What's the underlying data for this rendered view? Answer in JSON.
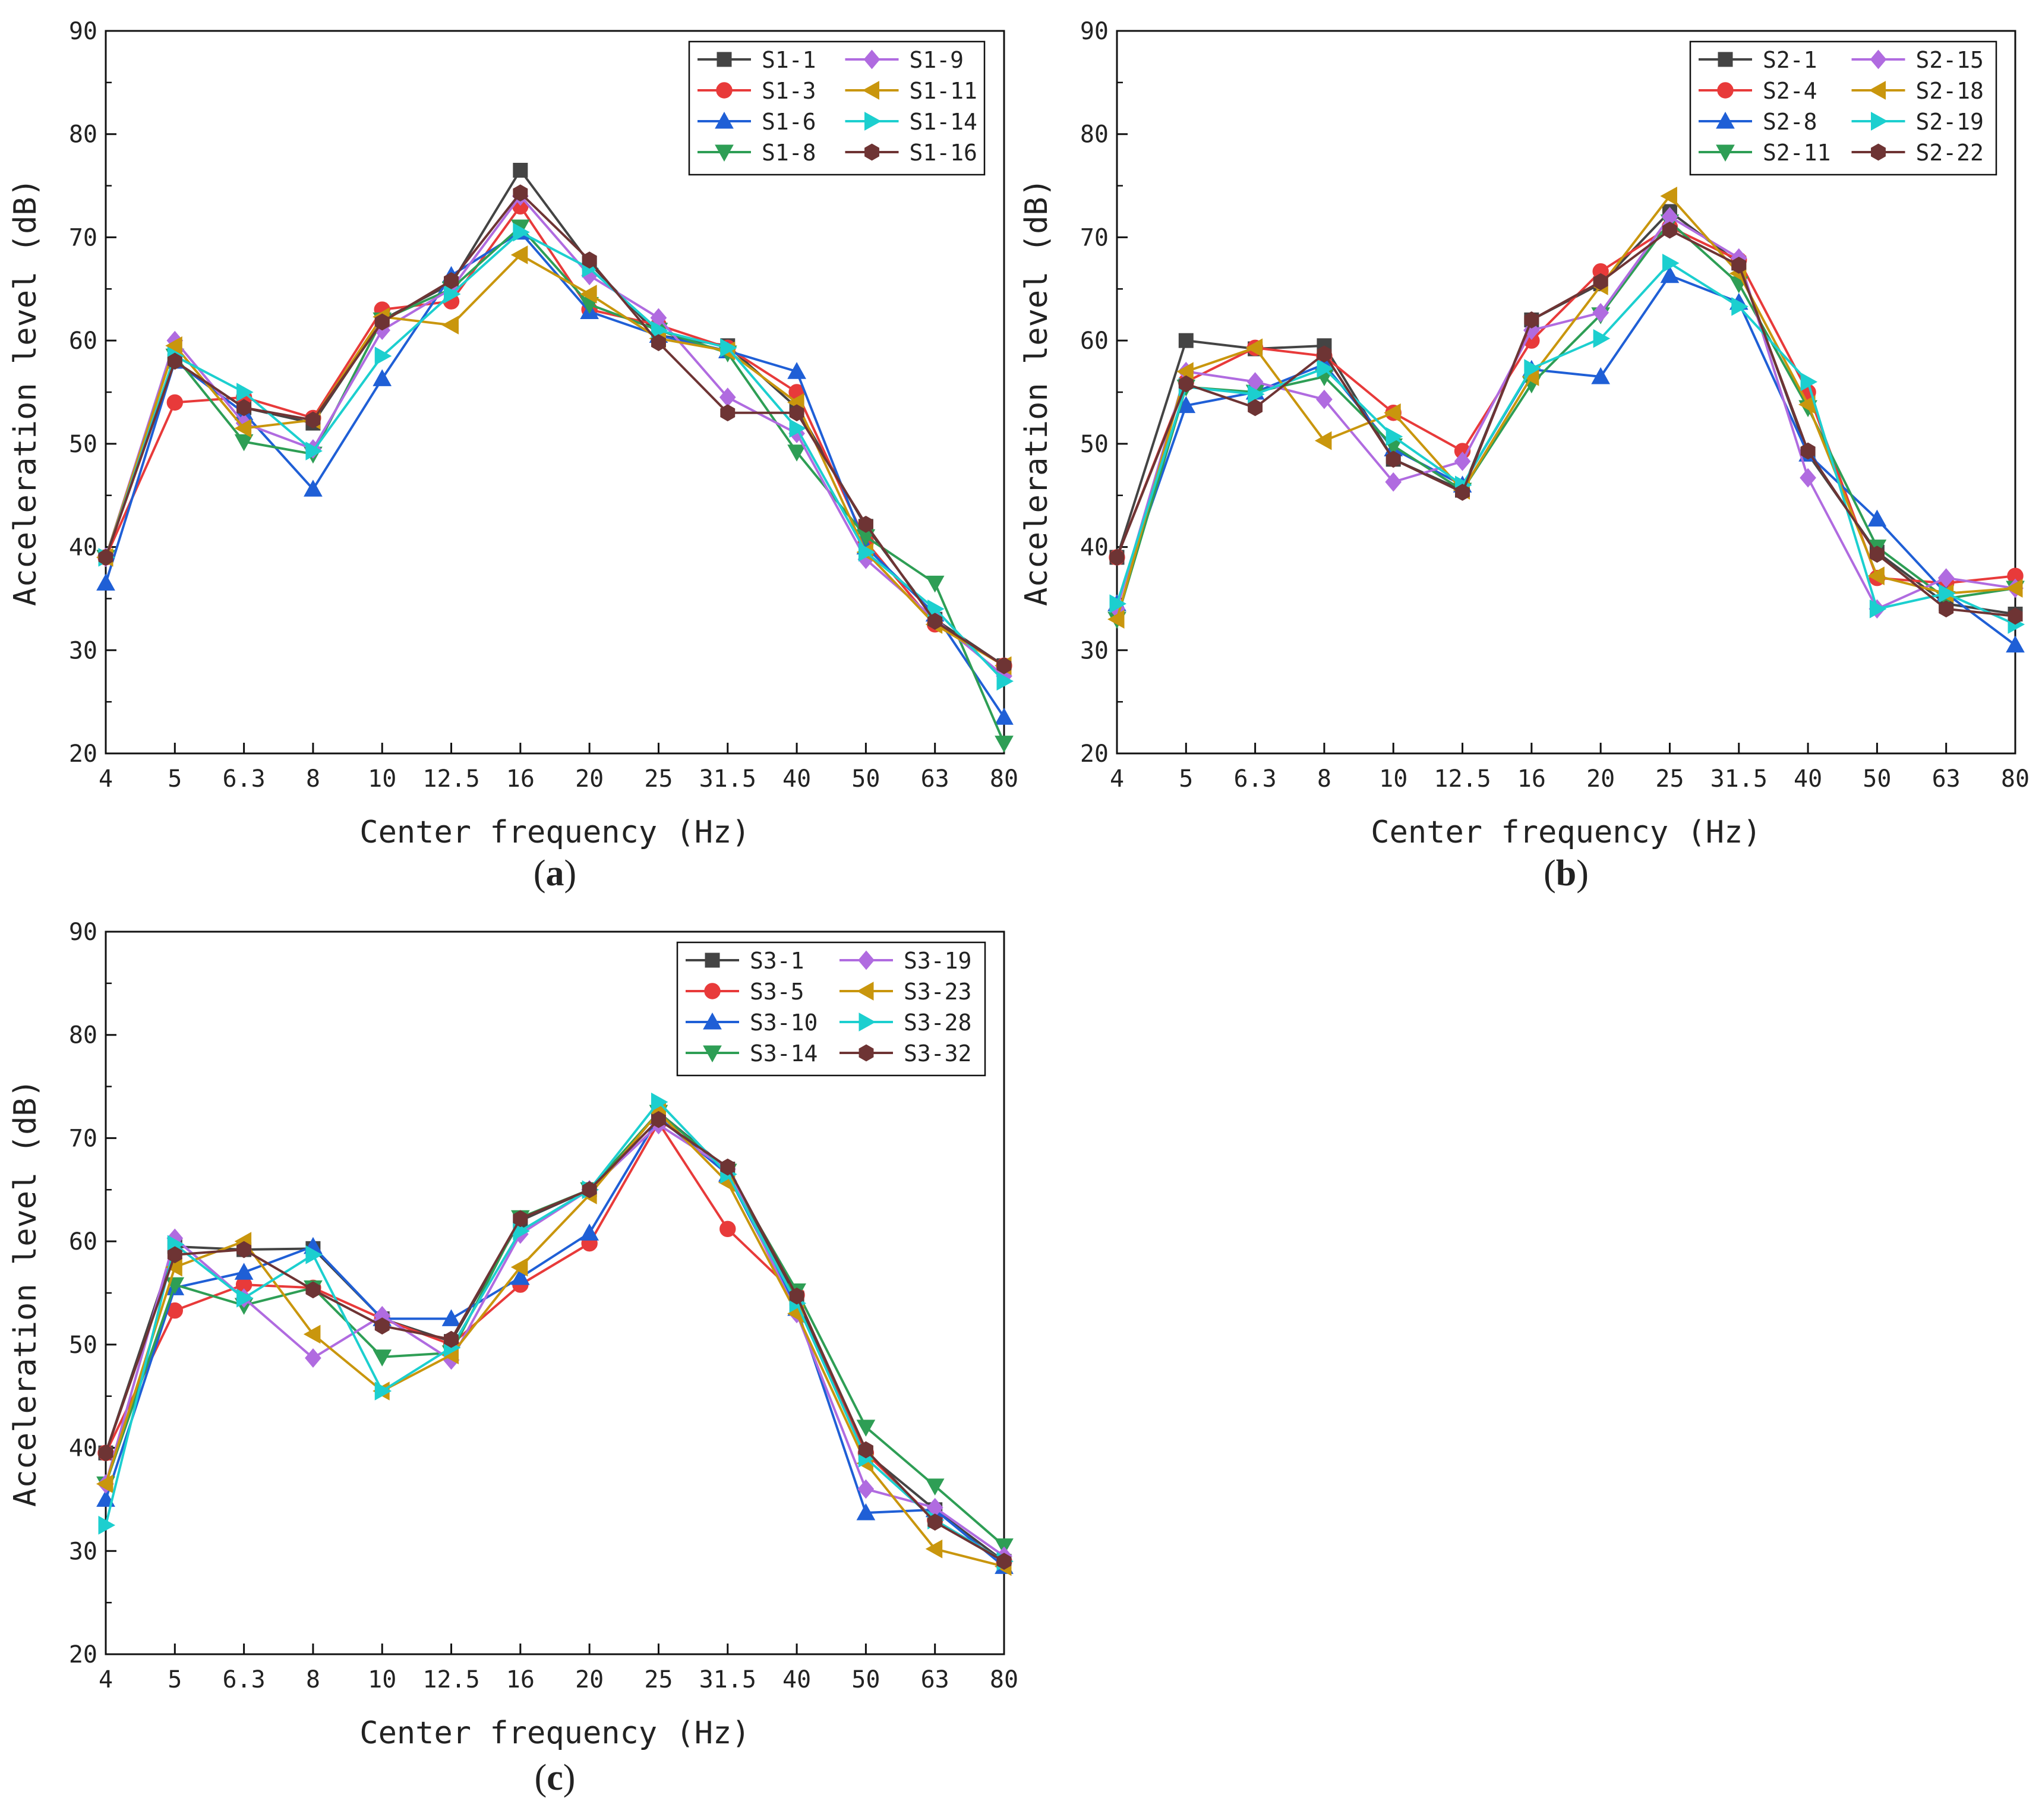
{
  "chart_data": [
    {
      "type": "line",
      "panel_label": "a",
      "categories": [
        "4",
        "5",
        "6.3",
        "8",
        "10",
        "12.5",
        "16",
        "20",
        "25",
        "31.5",
        "40",
        "50",
        "63",
        "80"
      ],
      "xlabel": "Center frequency (Hz)",
      "ylabel": "Acceleration level (dB)",
      "ylim": [
        20,
        90
      ],
      "yticks": [
        20,
        30,
        40,
        50,
        60,
        70,
        80,
        90
      ],
      "legend": "top-right",
      "series": [
        {
          "name": "S1-1",
          "color": "#444444",
          "marker": "square",
          "values": [
            39,
            58,
            53.5,
            52,
            62,
            65.5,
            76.5,
            67.5,
            60.5,
            59.5,
            53.5,
            42,
            33,
            28.5
          ]
        },
        {
          "name": "S1-3",
          "color": "#e83a3a",
          "marker": "circle",
          "values": [
            39,
            54,
            54.5,
            52.5,
            63,
            63.8,
            73,
            63,
            61.5,
            59.3,
            55,
            40.5,
            32.5,
            28.5
          ]
        },
        {
          "name": "S1-6",
          "color": "#1f5fd6",
          "marker": "triangle-up",
          "values": [
            36.5,
            58,
            53,
            45.6,
            56.3,
            66.3,
            70.5,
            62.8,
            60.5,
            59,
            57,
            40,
            33.5,
            23.5
          ]
        },
        {
          "name": "S1-8",
          "color": "#2e9e55",
          "marker": "triangle-down",
          "values": [
            39,
            58.5,
            50.2,
            49,
            62,
            65,
            71,
            63.5,
            61,
            58.8,
            49.2,
            41,
            36.5,
            21
          ]
        },
        {
          "name": "S1-9",
          "color": "#b06be0",
          "marker": "diamond",
          "values": [
            39,
            60,
            52,
            49.5,
            61,
            65,
            74,
            66.3,
            62.2,
            54.5,
            51,
            38.8,
            33,
            27.5
          ]
        },
        {
          "name": "S1-11",
          "color": "#c9960d",
          "marker": "triangle-left",
          "values": [
            39,
            59.5,
            51.5,
            52.3,
            62.3,
            61.5,
            68.3,
            64.5,
            60.2,
            59,
            54,
            39.5,
            32.5,
            28.5
          ]
        },
        {
          "name": "S1-14",
          "color": "#1ccfcf",
          "marker": "triangle-right",
          "values": [
            39,
            58.5,
            55,
            49.3,
            58.5,
            64.5,
            70.5,
            67,
            61,
            59.3,
            51.5,
            39.5,
            34,
            27
          ]
        },
        {
          "name": "S1-16",
          "color": "#6e3434",
          "marker": "hexagon",
          "values": [
            39,
            58,
            53.5,
            52.3,
            61.8,
            65.8,
            74.3,
            67.8,
            59.8,
            53,
            53,
            42.2,
            32.8,
            28.5
          ]
        }
      ]
    },
    {
      "type": "line",
      "panel_label": "b",
      "categories": [
        "4",
        "5",
        "6.3",
        "8",
        "10",
        "12.5",
        "16",
        "20",
        "25",
        "31.5",
        "40",
        "50",
        "63",
        "80"
      ],
      "xlabel": "Center frequency (Hz)",
      "ylabel": "Acceleration level (dB)",
      "ylim": [
        20,
        90
      ],
      "yticks": [
        20,
        30,
        40,
        50,
        60,
        70,
        80,
        90
      ],
      "legend": "top-right",
      "series": [
        {
          "name": "S2-1",
          "color": "#444444",
          "marker": "square",
          "values": [
            39,
            60,
            59.2,
            59.5,
            48.5,
            45.5,
            62,
            65.5,
            72.5,
            67.5,
            49,
            39.5,
            34.5,
            33.5
          ]
        },
        {
          "name": "S2-4",
          "color": "#e83a3a",
          "marker": "circle",
          "values": [
            39,
            56,
            59.3,
            58.5,
            53,
            49.3,
            60,
            66.7,
            71,
            67.8,
            55,
            37,
            36.5,
            37.2
          ]
        },
        {
          "name": "S2-8",
          "color": "#1f5fd6",
          "marker": "triangle-up",
          "values": [
            34.5,
            53.7,
            55,
            57.7,
            49.5,
            46,
            57.2,
            56.5,
            66.3,
            63.7,
            49,
            42.7,
            35.5,
            30.5
          ]
        },
        {
          "name": "S2-11",
          "color": "#2e9e55",
          "marker": "triangle-down",
          "values": [
            33,
            55.5,
            55,
            56.5,
            49.8,
            45.5,
            55.8,
            62.5,
            71.5,
            65.5,
            53.5,
            40,
            35,
            36
          ]
        },
        {
          "name": "S2-15",
          "color": "#b06be0",
          "marker": "diamond",
          "values": [
            34,
            57,
            56,
            54.3,
            46.3,
            48.3,
            61,
            62.7,
            72,
            68,
            46.7,
            34,
            37,
            36
          ]
        },
        {
          "name": "S2-18",
          "color": "#c9960d",
          "marker": "triangle-left",
          "values": [
            33,
            57,
            59.3,
            50.3,
            53,
            45.5,
            56.5,
            65.3,
            74,
            66.5,
            53.8,
            37.2,
            35.5,
            36
          ]
        },
        {
          "name": "S2-19",
          "color": "#1ccfcf",
          "marker": "triangle-right",
          "values": [
            34.5,
            55.5,
            54.8,
            57.3,
            50.7,
            46,
            57.3,
            60.2,
            67.5,
            63.3,
            56,
            34,
            35.5,
            32.5
          ]
        },
        {
          "name": "S2-22",
          "color": "#6e3434",
          "marker": "hexagon",
          "values": [
            39,
            55.8,
            53.5,
            58.7,
            48.5,
            45.3,
            62,
            65.7,
            70.7,
            67.3,
            49.3,
            39.3,
            34,
            33.3
          ]
        }
      ]
    },
    {
      "type": "line",
      "panel_label": "c",
      "categories": [
        "4",
        "5",
        "6.3",
        "8",
        "10",
        "12.5",
        "16",
        "20",
        "25",
        "31.5",
        "40",
        "50",
        "63",
        "80"
      ],
      "xlabel": "Center frequency (Hz)",
      "ylabel": "Acceleration level (dB)",
      "ylim": [
        20,
        90
      ],
      "yticks": [
        20,
        30,
        40,
        50,
        60,
        70,
        80,
        90
      ],
      "legend": "top-right",
      "series": [
        {
          "name": "S3-1",
          "color": "#444444",
          "marker": "square",
          "values": [
            39.5,
            59.5,
            59.2,
            59.3,
            52.5,
            50.3,
            62,
            65,
            72.5,
            67,
            54.5,
            39.5,
            34,
            29
          ]
        },
        {
          "name": "S3-5",
          "color": "#e83a3a",
          "marker": "circle",
          "values": [
            39.5,
            53.3,
            55.8,
            55.5,
            52.5,
            50,
            55.8,
            59.8,
            71.5,
            61.2,
            54.8,
            39.5,
            33,
            29
          ]
        },
        {
          "name": "S3-10",
          "color": "#1f5fd6",
          "marker": "triangle-up",
          "values": [
            35,
            55.5,
            57,
            59.5,
            52.5,
            52.5,
            56.5,
            60.8,
            72,
            66.5,
            53.5,
            33.7,
            34,
            28.5
          ]
        },
        {
          "name": "S3-14",
          "color": "#2e9e55",
          "marker": "triangle-down",
          "values": [
            36.5,
            55.8,
            53.8,
            55.5,
            48.8,
            49.2,
            62.3,
            65,
            72.5,
            66.8,
            55.2,
            42,
            36.3,
            30.5
          ]
        },
        {
          "name": "S3-19",
          "color": "#b06be0",
          "marker": "diamond",
          "values": [
            36.5,
            60.3,
            54.5,
            48.7,
            52.8,
            48.5,
            60.7,
            65,
            71.3,
            67,
            53,
            36,
            34.2,
            29.5
          ]
        },
        {
          "name": "S3-23",
          "color": "#c9960d",
          "marker": "triangle-left",
          "values": [
            36.5,
            57.5,
            60,
            51,
            45.5,
            49,
            57.5,
            64.5,
            72.5,
            65.7,
            53,
            38.5,
            30.2,
            28.5
          ]
        },
        {
          "name": "S3-28",
          "color": "#1ccfcf",
          "marker": "triangle-right",
          "values": [
            32.5,
            59.7,
            54.5,
            58.7,
            45.5,
            49.7,
            61,
            65,
            73.5,
            66.5,
            54,
            39,
            33,
            29
          ]
        },
        {
          "name": "S3-32",
          "color": "#6e3434",
          "marker": "hexagon",
          "values": [
            39.5,
            58.7,
            59.2,
            55.3,
            51.8,
            50.5,
            62.2,
            65,
            71.8,
            67.2,
            54.7,
            39.8,
            32.8,
            29
          ]
        }
      ]
    }
  ]
}
